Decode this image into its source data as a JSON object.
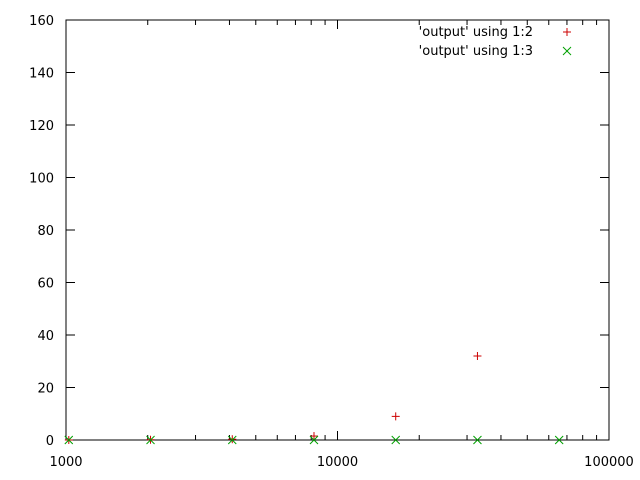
{
  "chart_data": {
    "type": "scatter",
    "title": "",
    "xlabel": "",
    "ylabel": "",
    "x_scale": "log",
    "xlim": [
      1000,
      100000
    ],
    "ylim": [
      0,
      160
    ],
    "x_ticks": [
      1000,
      10000,
      100000
    ],
    "x_tick_labels": [
      "1000",
      "10000",
      "100000"
    ],
    "x_minor_ticks": [
      2000,
      3000,
      4000,
      5000,
      6000,
      7000,
      8000,
      9000,
      20000,
      30000,
      40000,
      50000,
      60000,
      70000,
      80000,
      90000
    ],
    "y_ticks": [
      0,
      20,
      40,
      60,
      80,
      100,
      120,
      140,
      160
    ],
    "y_tick_labels": [
      "0",
      "20",
      "40",
      "60",
      "80",
      "100",
      "120",
      "140",
      "160"
    ],
    "grid": false,
    "legend_position": "top-right",
    "series": [
      {
        "name": "'output' using 1:2",
        "marker": "plus",
        "color": "#cc0000",
        "points": [
          {
            "x": 1024,
            "y": 0
          },
          {
            "x": 2048,
            "y": 0.1
          },
          {
            "x": 4096,
            "y": 0.3
          },
          {
            "x": 8192,
            "y": 1.5
          },
          {
            "x": 16384,
            "y": 9
          },
          {
            "x": 32768,
            "y": 32
          }
        ]
      },
      {
        "name": "'output' using 1:3",
        "marker": "cross",
        "color": "#00a000",
        "points": [
          {
            "x": 1024,
            "y": 0
          },
          {
            "x": 2048,
            "y": 0
          },
          {
            "x": 4096,
            "y": 0
          },
          {
            "x": 8192,
            "y": 0
          },
          {
            "x": 16384,
            "y": 0
          },
          {
            "x": 32768,
            "y": 0
          },
          {
            "x": 65536,
            "y": 0
          }
        ]
      }
    ]
  }
}
